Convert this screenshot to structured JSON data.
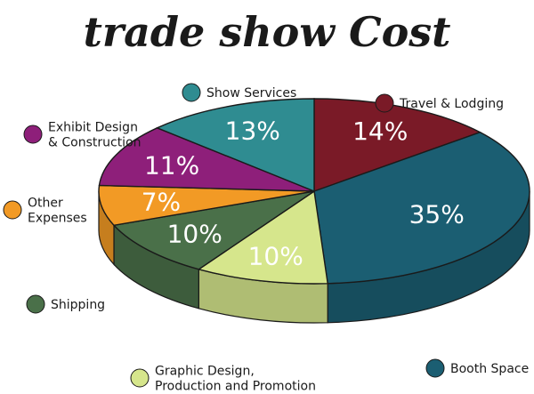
{
  "chart_data": {
    "type": "pie",
    "title": "trade show Cost",
    "slices": [
      {
        "label": "Travel & Lodging",
        "value": 14,
        "value_label": "14%",
        "color": "#7a1a27"
      },
      {
        "label": "Booth Space",
        "value": 35,
        "value_label": "35%",
        "color": "#1b5e72"
      },
      {
        "label": "Graphic Design, Production and Promotion",
        "value": 10,
        "value_label": "10%",
        "color": "#d6e68c"
      },
      {
        "label": "Shipping",
        "value": 10,
        "value_label": "10%",
        "color": "#4a7049"
      },
      {
        "label": "Other Expenses",
        "value": 7,
        "value_label": "7%",
        "color": "#f29a25"
      },
      {
        "label": "Exhibit Design & Construction",
        "value": 11,
        "value_label": "11%",
        "color": "#8e1f7a"
      },
      {
        "label": "Show Services",
        "value": 13,
        "value_label": "13%",
        "color": "#2f8c91"
      }
    ],
    "legend": [
      {
        "lines": [
          "Show Services"
        ],
        "color": "#2f8c91"
      },
      {
        "lines": [
          "Travel & Lodging"
        ],
        "color": "#7a1a27"
      },
      {
        "lines": [
          "Exhibit Design",
          "& Construction"
        ],
        "color": "#8e1f7a"
      },
      {
        "lines": [
          "Other",
          "Expenses"
        ],
        "color": "#f29a25"
      },
      {
        "lines": [
          "Shipping"
        ],
        "color": "#4a7049"
      },
      {
        "lines": [
          "Graphic Design,",
          "Production and Promotion"
        ],
        "color": "#d6e68c"
      },
      {
        "lines": [
          "Booth Space"
        ],
        "color": "#1b5e72"
      }
    ],
    "style": "3d-tilted",
    "start_direction": "top",
    "order": "clockwise"
  }
}
